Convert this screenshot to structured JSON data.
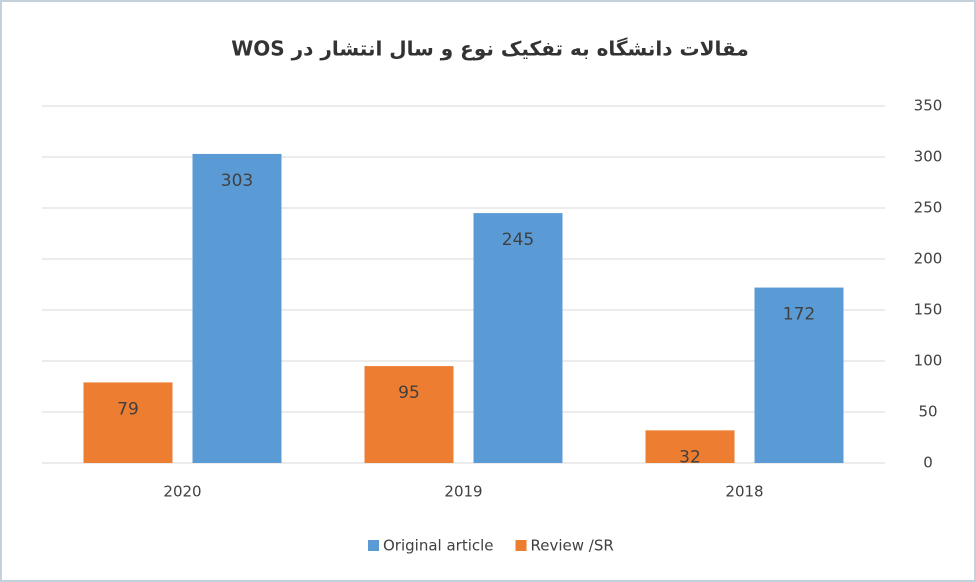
{
  "chart_data": {
    "type": "bar",
    "title": "مقالات دانشگاه به تفکیک نوع و سال انتشار در WOS",
    "categories": [
      "2020",
      "2019",
      "2018"
    ],
    "series": [
      {
        "name": "Original article",
        "color": "#5b9bd5",
        "values": [
          303,
          245,
          172
        ]
      },
      {
        "name": "Review /SR",
        "color": "#ed7d31",
        "values": [
          79,
          95,
          32
        ]
      }
    ],
    "ylim": [
      0,
      350
    ],
    "yticks": [
      0,
      50,
      100,
      150,
      200,
      250,
      300,
      350
    ],
    "grid": true,
    "legend": "bottom"
  }
}
